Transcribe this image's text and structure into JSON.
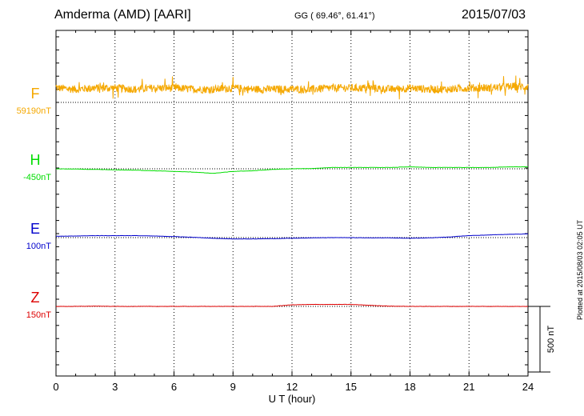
{
  "header": {
    "station": "Amderma (AMD)  [AARI]",
    "coords": "GG ( 69.46°,  61.41°)",
    "date": "2015/07/03"
  },
  "plotted_note": "Plotted at 2015/08/03 02:05 UT",
  "scale_bar_label": "500 nT",
  "chart_data": {
    "type": "line",
    "xlabel": "U T (hour)",
    "xlim": [
      0,
      24
    ],
    "x_ticks": [
      0,
      3,
      6,
      9,
      12,
      15,
      18,
      21,
      24
    ],
    "grid": true,
    "scale_bar_nT": 500,
    "series": [
      {
        "name": "F",
        "baseline_label": "59190nT",
        "baseline": 59190,
        "color": "#f5a800",
        "style": "noisy",
        "x": [
          0,
          1,
          2,
          3,
          4,
          5,
          6,
          7,
          8,
          9,
          10,
          11,
          12,
          13,
          14,
          15,
          16,
          17,
          18,
          19,
          20,
          21,
          22,
          23,
          24
        ],
        "values": [
          59300,
          59290,
          59300,
          59300,
          59290,
          59300,
          59300,
          59290,
          59290,
          59300,
          59290,
          59290,
          59290,
          59290,
          59300,
          59300,
          59300,
          59290,
          59300,
          59290,
          59290,
          59300,
          59300,
          59310,
          59310
        ],
        "noise_amp_nT": 60
      },
      {
        "name": "H",
        "baseline_label": "-450nT",
        "baseline": -450,
        "color": "#00dd00",
        "style": "smooth",
        "x": [
          0,
          1,
          2,
          3,
          4,
          5,
          6,
          7,
          8,
          9,
          10,
          11,
          12,
          13,
          14,
          15,
          16,
          17,
          18,
          19,
          20,
          21,
          22,
          23,
          24
        ],
        "values": [
          -450,
          -452,
          -455,
          -458,
          -460,
          -465,
          -470,
          -475,
          -485,
          -470,
          -465,
          -455,
          -450,
          -448,
          -440,
          -440,
          -440,
          -440,
          -435,
          -440,
          -440,
          -440,
          -440,
          -435,
          -435
        ]
      },
      {
        "name": "E",
        "baseline_label": "100nT",
        "baseline": 100,
        "color": "#0000cc",
        "style": "smooth",
        "x": [
          0,
          1,
          2,
          3,
          4,
          5,
          6,
          7,
          8,
          9,
          10,
          11,
          12,
          13,
          14,
          15,
          16,
          17,
          18,
          19,
          20,
          21,
          22,
          23,
          24
        ],
        "values": [
          110,
          112,
          115,
          115,
          115,
          112,
          108,
          102,
          95,
          90,
          90,
          92,
          95,
          98,
          100,
          100,
          98,
          98,
          95,
          98,
          105,
          115,
          120,
          125,
          128
        ]
      },
      {
        "name": "Z",
        "baseline_label": "150nT",
        "baseline": 150,
        "color": "#dd0000",
        "style": "smooth",
        "x": [
          0,
          1,
          2,
          3,
          4,
          5,
          6,
          7,
          8,
          9,
          10,
          11,
          12,
          13,
          14,
          15,
          16,
          17,
          18,
          19,
          20,
          21,
          22,
          23,
          24
        ],
        "values": [
          150,
          150,
          152,
          150,
          150,
          150,
          150,
          150,
          150,
          150,
          150,
          150,
          162,
          165,
          165,
          165,
          158,
          152,
          150,
          150,
          150,
          150,
          150,
          150,
          150
        ]
      }
    ]
  }
}
